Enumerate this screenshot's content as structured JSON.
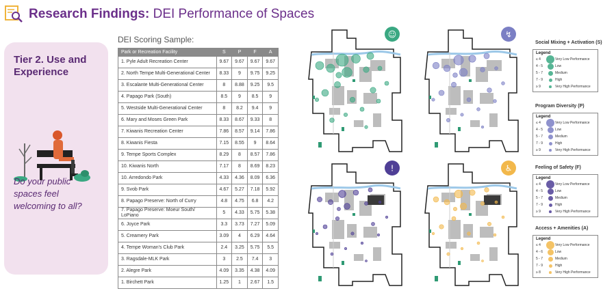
{
  "header": {
    "title_bold": "Research Findings:",
    "title_light": "DEI Performance of Spaces"
  },
  "tier": {
    "title": "Tier 2. Use and Experience",
    "question": "Do your public spaces feel welcoming to all?"
  },
  "table": {
    "title": "DEI Scoring Sample:",
    "headers": [
      "Park or Recreation Facility",
      "S",
      "P",
      "F",
      "A"
    ],
    "rows": [
      {
        "name": "1. Pyle Adult Recreation Center",
        "s": "9.67",
        "p": "9.67",
        "f": "9.67",
        "a": "9.67"
      },
      {
        "name": "2. North Tempe Multi-Generational Center",
        "s": "8.33",
        "p": "9",
        "f": "9.75",
        "a": "9.25"
      },
      {
        "name": "3. Escalante Multi-Generational Center",
        "s": "8",
        "p": "8.88",
        "f": "9.25",
        "a": "9.5"
      },
      {
        "name": "4. Papago Park (South)",
        "s": "8.5",
        "p": "9",
        "f": "8.5",
        "a": "9"
      },
      {
        "name": "5. Westside Multi-Generational Center",
        "s": "8",
        "p": "8.2",
        "f": "9.4",
        "a": "9"
      },
      {
        "name": "6. Mary and Moses Green Park",
        "s": "8.33",
        "p": "8.67",
        "f": "9.33",
        "a": "8"
      },
      {
        "name": "7. Kiwanis Recreation Center",
        "s": "7.86",
        "p": "8.57",
        "f": "9.14",
        "a": "7.86"
      },
      {
        "name": "8. Kiwanis Fiesta",
        "s": "7.15",
        "p": "8.55",
        "f": "9",
        "a": "8.64"
      },
      {
        "name": "9. Tempe Sports Complex",
        "s": "8.29",
        "p": "8",
        "f": "8.57",
        "a": "7.86"
      },
      {
        "name": "10. Kiwanis North",
        "s": "7.17",
        "p": "8",
        "f": "8.69",
        "a": "8.23"
      },
      {
        "name": "10. Arredondo Park",
        "s": "4.33",
        "p": "4.36",
        "f": "8.09",
        "a": "6.36"
      },
      {
        "name": "9. Svob Park",
        "s": "4.67",
        "p": "5.27",
        "f": "7.18",
        "a": "5.92"
      },
      {
        "name": "8. Papago Preserve: North of Curry",
        "s": "4.8",
        "p": "4.75",
        "f": "6.8",
        "a": "4.2"
      },
      {
        "name": "7. Papago Preserve: Moeur South/ LoPiano",
        "s": "5",
        "p": "4.33",
        "f": "5.75",
        "a": "5.38"
      },
      {
        "name": "6. Joyce Park",
        "s": "3.3",
        "p": "3.73",
        "f": "7.27",
        "a": "5.09"
      },
      {
        "name": "5. Creamery Park",
        "s": "3.09",
        "p": "4",
        "f": "6.29",
        "a": "4.64"
      },
      {
        "name": "4. Tempe Woman's Club Park",
        "s": "2.4",
        "p": "3.25",
        "f": "5.75",
        "a": "5.5"
      },
      {
        "name": "3. Ragsdale-MLK Park",
        "s": "3",
        "p": "2.5",
        "f": "7.4",
        "a": "3"
      },
      {
        "name": "2. Alegre Park",
        "s": "4.09",
        "p": "3.35",
        "f": "4.38",
        "a": "4.09"
      },
      {
        "name": "1. Birchett Park",
        "s": "1.25",
        "p": "1",
        "f": "2.67",
        "a": "1.5"
      }
    ]
  },
  "legends": [
    {
      "title": "Social Mixing + Activation (S)",
      "heading": "Legend",
      "color": "#3aa882",
      "rows": [
        {
          "range": "≤ 4",
          "label": "Very Low Performance"
        },
        {
          "range": "4 - 5",
          "label": "Low"
        },
        {
          "range": "5 - 7",
          "label": "Medium"
        },
        {
          "range": "7 - 9",
          "label": "High"
        },
        {
          "range": "≥ 9",
          "label": "Very High Performance"
        }
      ]
    },
    {
      "title": "Program Diversity (P)",
      "heading": "Legend",
      "color": "#7b7fc4",
      "rows": [
        {
          "range": "≤ 4",
          "label": "Very Low Performance"
        },
        {
          "range": "4 - 5",
          "label": "Low"
        },
        {
          "range": "5 - 7",
          "label": "Medium"
        },
        {
          "range": "7 - 9",
          "label": "High"
        },
        {
          "range": "≥ 9",
          "label": "Very High Performance"
        }
      ]
    },
    {
      "title": "Feeling of Safety (F)",
      "heading": "Legend",
      "color": "#4f3f96",
      "rows": [
        {
          "range": "≤ 4",
          "label": "Very Low Performance"
        },
        {
          "range": "4 - 5",
          "label": "Low"
        },
        {
          "range": "5 - 7",
          "label": "Medium"
        },
        {
          "range": "7 - 9",
          "label": "High"
        },
        {
          "range": "≥ 9",
          "label": "Very High Performance"
        }
      ]
    },
    {
      "title": "Access + Amenities (A)",
      "heading": "Legend",
      "color": "#f2b84b",
      "rows": [
        {
          "range": "≤ 4",
          "label": "Very Low Performance"
        },
        {
          "range": "4 - 6",
          "label": "Low"
        },
        {
          "range": "5 - 7",
          "label": "Medium"
        },
        {
          "range": "7 - 9",
          "label": "High"
        },
        {
          "range": "≥ 8",
          "label": "Very High Performance"
        }
      ]
    }
  ],
  "maps": [
    {
      "name": "social-mixing-map",
      "color": "#3aa882",
      "icon": "people-icon"
    },
    {
      "name": "program-diversity-map",
      "color": "#7b7fc4",
      "icon": "activity-icon"
    },
    {
      "name": "feeling-of-safety-map",
      "color": "#4f3f96",
      "icon": "exclamation-icon"
    },
    {
      "name": "access-amenities-map",
      "color": "#f2b84b",
      "icon": "accessibility-icon"
    }
  ]
}
